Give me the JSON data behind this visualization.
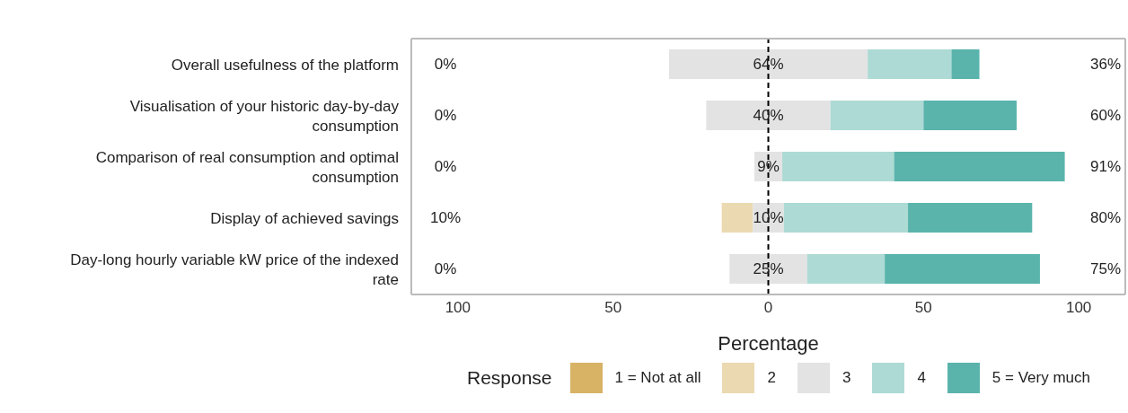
{
  "chart_data": {
    "type": "bar",
    "orientation": "horizontal",
    "xlabel": "Percentage",
    "legend_title": "Response",
    "legend": "bottom",
    "grid": false,
    "categories": [
      "Overall usefulness of the platform",
      "Visualisation of your historic day-by-day consumption",
      "Comparison of real consumption and optimal consumption",
      "Display of achieved savings",
      "Day-long hourly variable kW price of the indexed rate"
    ],
    "xlim": [
      -115,
      115
    ],
    "xticks": [
      {
        "value": -100,
        "label": "100"
      },
      {
        "value": -50,
        "label": "50"
      },
      0,
      50,
      100
    ],
    "series": [
      {
        "name": "1 = Not at all",
        "color": "#d8b365",
        "values": [
          0,
          0,
          0,
          0,
          0
        ]
      },
      {
        "name": "2",
        "color": "#ebd9b1",
        "values": [
          0,
          0,
          0,
          10,
          0
        ],
        "base": [
          null,
          null,
          null,
          -15,
          null
        ]
      },
      {
        "name": "3",
        "color": "#e3e3e3",
        "values": [
          64,
          40,
          9,
          10,
          25
        ],
        "base": [
          -32,
          -20,
          -4.5,
          -5,
          -12.5
        ],
        "value_labels": [
          "64%",
          "40%",
          "9%",
          "10%",
          "25%"
        ]
      },
      {
        "name": "4",
        "color": "#addad4",
        "values": [
          27,
          30,
          36,
          40,
          25
        ],
        "base": [
          32,
          20,
          4.5,
          5,
          12.5
        ]
      },
      {
        "name": "5 = Very much",
        "color": "#5ab4ac",
        "values": [
          9,
          30,
          55,
          40,
          50
        ],
        "base": [
          59,
          50,
          40.5,
          45,
          37.5
        ]
      }
    ],
    "ref_lines": [
      {
        "axis": "x",
        "value": 0,
        "color": "#000000",
        "line_style": "dashed"
      }
    ],
    "annotations": [
      "0%",
      "0%",
      "0%",
      "10%",
      "0%",
      "36%",
      "60%",
      "91%",
      "80%",
      "75%"
    ]
  }
}
